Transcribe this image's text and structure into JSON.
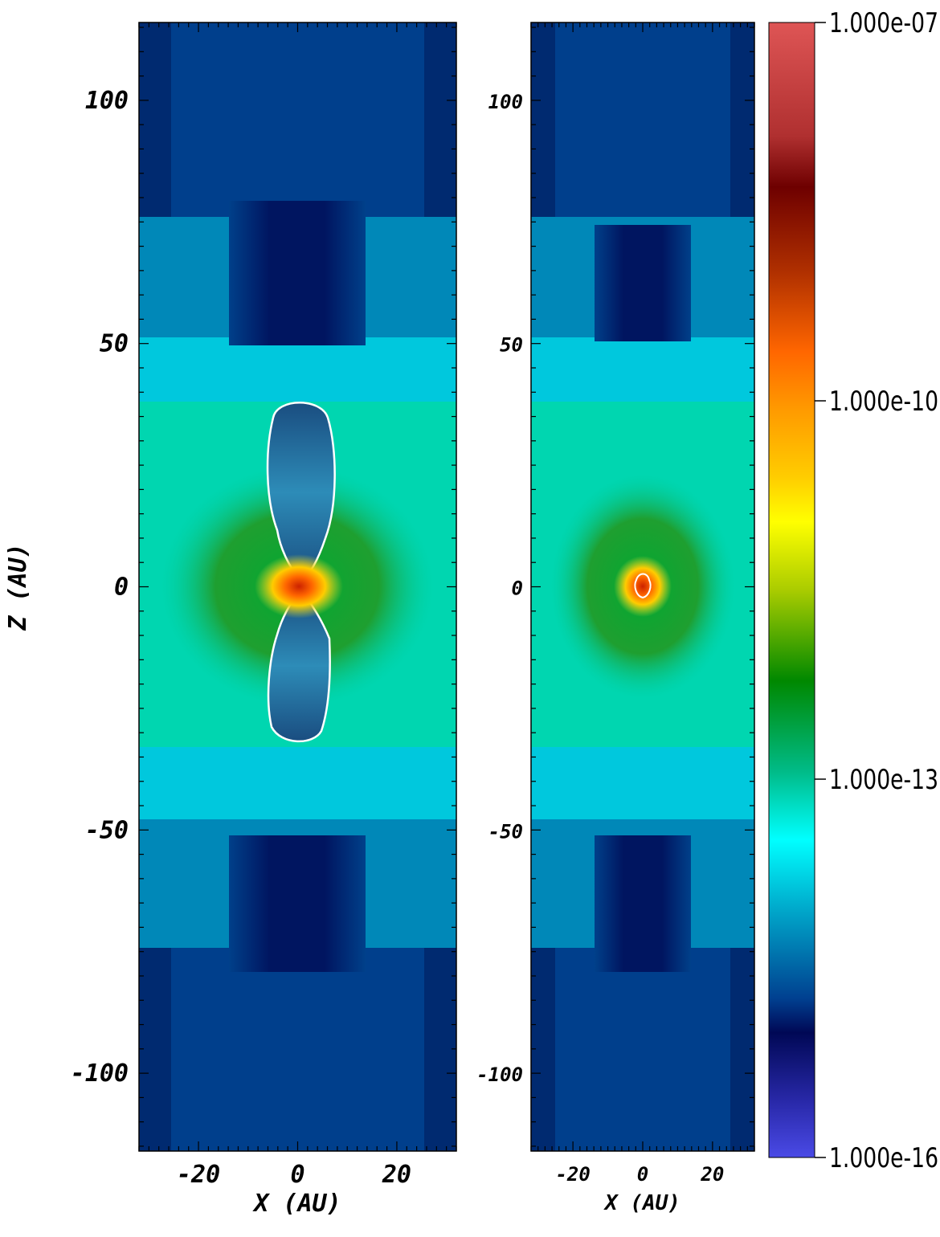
{
  "chart_data": [
    {
      "type": "heatmap",
      "panel": "left",
      "xlabel": "X (AU)",
      "ylabel": "Z (AU)",
      "xlim": [
        -32,
        32
      ],
      "ylim": [
        -116,
        116
      ],
      "x_ticks": [
        {
          "value": -20,
          "label": "-20"
        },
        {
          "value": 0,
          "label": "0"
        },
        {
          "value": 20,
          "label": "20"
        }
      ],
      "y_ticks": [
        {
          "value": 100,
          "label": "100"
        },
        {
          "value": 50,
          "label": "50"
        },
        {
          "value": 0,
          "label": "0"
        },
        {
          "value": -50,
          "label": "-50"
        },
        {
          "value": -100,
          "label": "-100"
        }
      ]
    },
    {
      "type": "heatmap",
      "panel": "right",
      "xlabel": "X (AU)",
      "ylabel": "",
      "xlim": [
        -32,
        32
      ],
      "ylim": [
        -116,
        116
      ],
      "x_ticks": [
        {
          "value": -20,
          "label": "-20"
        },
        {
          "value": 0,
          "label": "0"
        },
        {
          "value": 20,
          "label": "20"
        }
      ],
      "y_ticks": [
        {
          "value": 100,
          "label": "100"
        },
        {
          "value": 50,
          "label": "50"
        },
        {
          "value": 0,
          "label": "0"
        },
        {
          "value": -50,
          "label": "-50"
        },
        {
          "value": -100,
          "label": "-100"
        }
      ]
    }
  ],
  "colorbar": {
    "scale": "log",
    "range": [
      1e-16,
      1e-07
    ],
    "labels": [
      "1.000e-07",
      "1.000e-10",
      "1.000e-13",
      "1.000e-16"
    ],
    "colors": [
      "#dd5555",
      "#7a0000",
      "#ff6600",
      "#ffb000",
      "#ffff00",
      "#008800",
      "#00bb88",
      "#00ffff",
      "#001060",
      "#4a4ae0"
    ]
  }
}
